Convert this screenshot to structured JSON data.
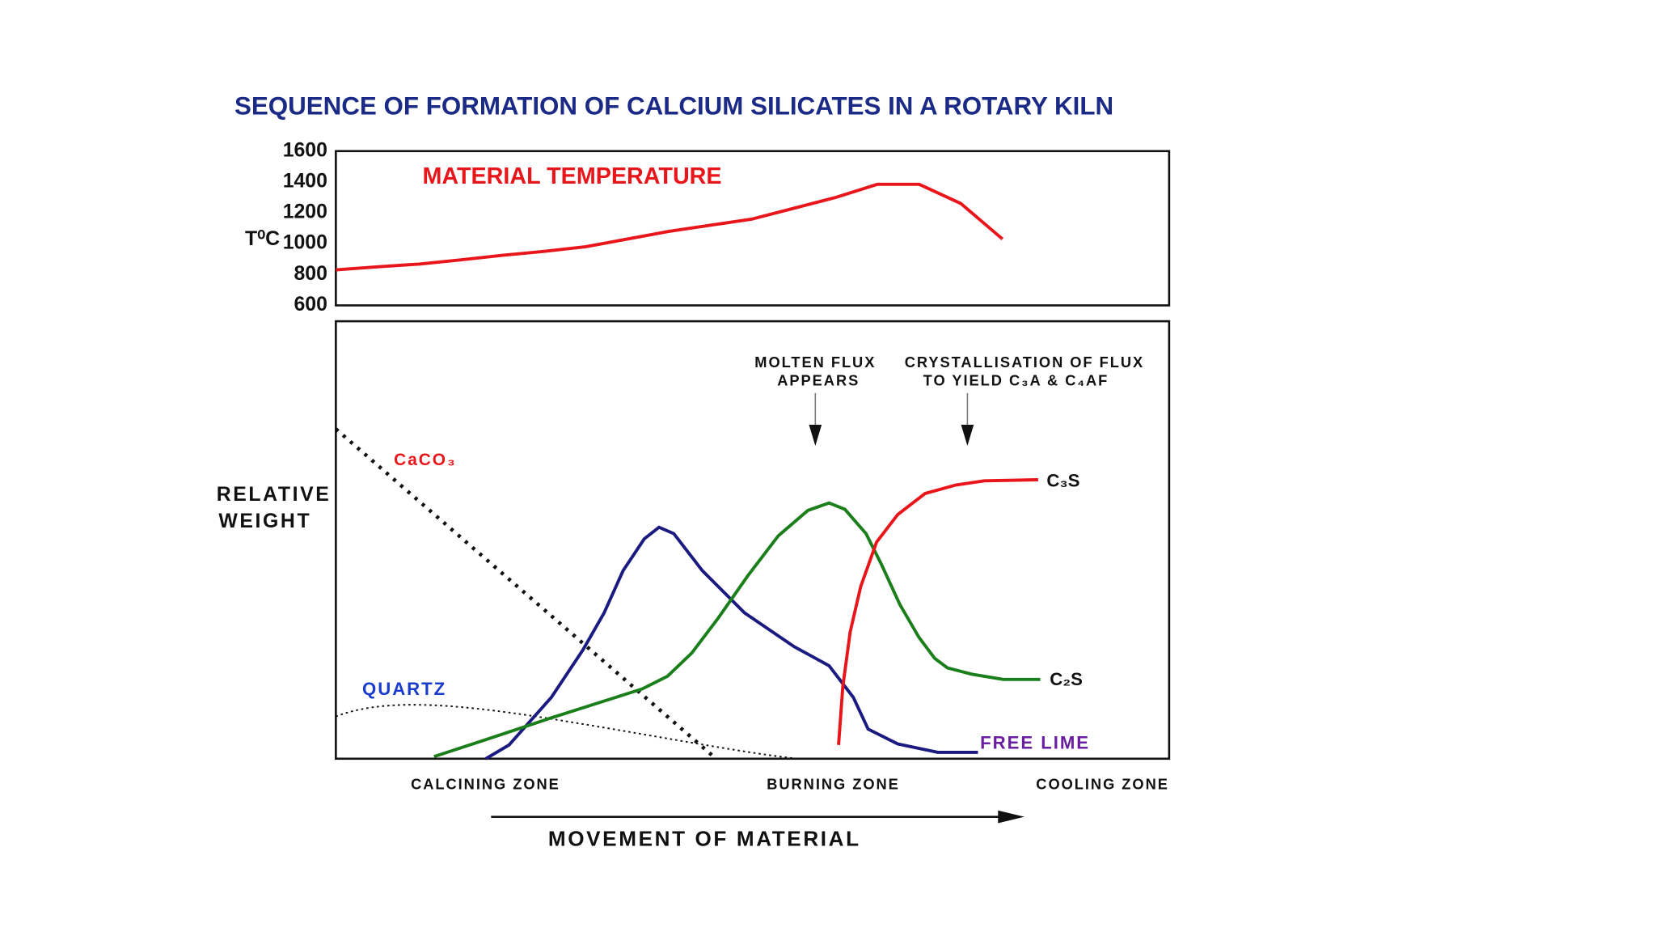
{
  "chart_data": {
    "type": "line",
    "title": "SEQUENCE OF FORMATION OF CALCIUM SILICATES IN A ROTARY KILN",
    "y_label": "T⁰C",
    "categories": [
      null,
      null,
      null,
      null,
      null,
      null,
      null,
      null,
      null,
      null,
      null,
      null,
      null,
      null,
      null,
      null,
      null,
      null,
      null,
      null,
      null
    ],
    "series": [
      {
        "name": "MATERIAL TEMPERATURE",
        "color": "#e8161b",
        "values": [
          830,
          850,
          868,
          895,
          925,
          950,
          980,
          1030,
          1080,
          1120,
          1160,
          1230,
          1300,
          1385,
          1385,
          1260,
          1030,
          null,
          null,
          null,
          null
        ]
      }
    ],
    "ylim": [
      600,
      1600
    ],
    "yticks": [
      600,
      800,
      1000,
      1200,
      1400,
      1600
    ],
    "grid": false
  },
  "diagram": {
    "y_label": [
      "RELATIVE",
      "WEIGHT"
    ],
    "curve_labels": {
      "caco3": "CaCO₃",
      "quartz": "QUARTZ",
      "c3s": "C₃S",
      "c2s": "C₂S",
      "free_lime": "FREE LIME"
    },
    "annotations": [
      [
        "MOLTEN FLUX",
        "APPEARS"
      ],
      [
        "CRYSTALLISATION OF FLUX",
        "TO YIELD C₃A & C₄AF"
      ]
    ],
    "zones": [
      "CALCINING ZONE",
      "BURNING ZONE",
      "COOLING ZONE"
    ],
    "arrow_label": "MOVEMENT OF MATERIAL"
  }
}
